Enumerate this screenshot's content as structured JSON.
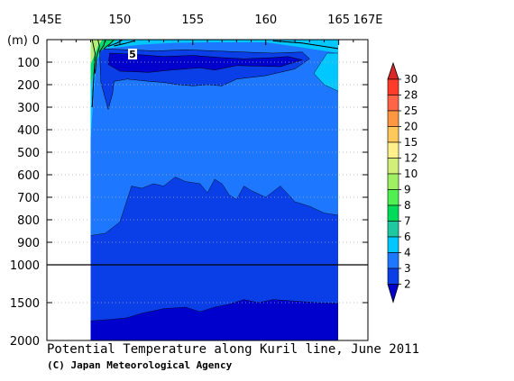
{
  "chart_data": {
    "type": "heatmap",
    "title": "Potential Temperature along Kuril line, June 2011",
    "credit": "(C) Japan Meteorological Agency",
    "x_ticks": [
      {
        "value": 145,
        "label": "145E"
      },
      {
        "value": 150,
        "label": "150"
      },
      {
        "value": 155,
        "label": "155"
      },
      {
        "value": 160,
        "label": "160"
      },
      {
        "value": 165,
        "label": "165"
      },
      {
        "value": 167,
        "label": "167E"
      }
    ],
    "x_range": [
      145,
      167
    ],
    "section_range": [
      148.0,
      165.0
    ],
    "y_unit": "(m)",
    "y_ticks_upper": [
      0,
      100,
      200,
      300,
      400,
      500,
      600,
      700,
      800,
      900,
      1000
    ],
    "y_ticks_lower": [
      1500,
      2000
    ],
    "y_range": [
      0,
      2000
    ],
    "y_break": 1000,
    "grid": true,
    "legend_position": "right",
    "levels": [
      2,
      3,
      4,
      6,
      7,
      8,
      9,
      10,
      12,
      15,
      20,
      25,
      28,
      30
    ],
    "level_colors": [
      "#0000cd",
      "#0a3ee6",
      "#1e78ff",
      "#00c8ff",
      "#1ec8a0",
      "#00dc5a",
      "#50f050",
      "#a0f064",
      "#d2f078",
      "#fff08c",
      "#ffc85a",
      "#ff9641",
      "#ff6446",
      "#ff3c28",
      "#dc2828"
    ],
    "contour_label": "5",
    "isotherm_2_depth": [
      {
        "lon": 148.0,
        "depth": 870
      },
      {
        "lon": 149.0,
        "depth": 860
      },
      {
        "lon": 150.0,
        "depth": 810
      },
      {
        "lon": 150.8,
        "depth": 650
      },
      {
        "lon": 151.5,
        "depth": 660
      },
      {
        "lon": 152.3,
        "depth": 640
      },
      {
        "lon": 153.0,
        "depth": 650
      },
      {
        "lon": 153.8,
        "depth": 610
      },
      {
        "lon": 154.5,
        "depth": 630
      },
      {
        "lon": 155.5,
        "depth": 640
      },
      {
        "lon": 156.0,
        "depth": 680
      },
      {
        "lon": 156.5,
        "depth": 620
      },
      {
        "lon": 157.0,
        "depth": 640
      },
      {
        "lon": 157.5,
        "depth": 690
      },
      {
        "lon": 158.0,
        "depth": 710
      },
      {
        "lon": 158.5,
        "depth": 650
      },
      {
        "lon": 159.0,
        "depth": 670
      },
      {
        "lon": 160.0,
        "depth": 700
      },
      {
        "lon": 161.0,
        "depth": 650
      },
      {
        "lon": 162.0,
        "depth": 720
      },
      {
        "lon": 163.0,
        "depth": 740
      },
      {
        "lon": 164.0,
        "depth": 770
      },
      {
        "lon": 165.0,
        "depth": 780
      }
    ],
    "deep_boundary_depth": [
      {
        "lon": 148.0,
        "depth": 1740
      },
      {
        "lon": 149.5,
        "depth": 1720
      },
      {
        "lon": 150.5,
        "depth": 1700
      },
      {
        "lon": 151.5,
        "depth": 1640
      },
      {
        "lon": 153.0,
        "depth": 1580
      },
      {
        "lon": 154.5,
        "depth": 1560
      },
      {
        "lon": 155.5,
        "depth": 1620
      },
      {
        "lon": 156.5,
        "depth": 1560
      },
      {
        "lon": 157.5,
        "depth": 1520
      },
      {
        "lon": 158.5,
        "depth": 1460
      },
      {
        "lon": 159.5,
        "depth": 1500
      },
      {
        "lon": 160.5,
        "depth": 1460
      },
      {
        "lon": 162.0,
        "depth": 1480
      },
      {
        "lon": 163.5,
        "depth": 1500
      },
      {
        "lon": 165.0,
        "depth": 1510
      }
    ],
    "core_below_2": [
      {
        "lon": 149.3,
        "depth": 60
      },
      {
        "lon": 151.0,
        "depth": 65
      },
      {
        "lon": 153.0,
        "depth": 75
      },
      {
        "lon": 155.0,
        "depth": 70
      },
      {
        "lon": 157.0,
        "depth": 80
      },
      {
        "lon": 158.5,
        "depth": 85
      },
      {
        "lon": 160.5,
        "depth": 80
      },
      {
        "lon": 161.5,
        "depth": 75
      },
      {
        "lon": 162.5,
        "depth": 90
      },
      {
        "lon": 161.0,
        "depth": 120
      },
      {
        "lon": 158.0,
        "depth": 115
      },
      {
        "lon": 156.5,
        "depth": 135
      },
      {
        "lon": 155.5,
        "depth": 125
      },
      {
        "lon": 153.5,
        "depth": 135
      },
      {
        "lon": 152.0,
        "depth": 145
      },
      {
        "lon": 150.0,
        "depth": 140
      },
      {
        "lon": 149.2,
        "depth": 110
      }
    ],
    "subsurface_below_3": [
      {
        "lon": 148.6,
        "depth": 40
      },
      {
        "lon": 150.5,
        "depth": 45
      },
      {
        "lon": 152.5,
        "depth": 50
      },
      {
        "lon": 154.5,
        "depth": 45
      },
      {
        "lon": 156.5,
        "depth": 50
      },
      {
        "lon": 158.5,
        "depth": 55
      },
      {
        "lon": 160.5,
        "depth": 60
      },
      {
        "lon": 162.5,
        "depth": 55
      },
      {
        "lon": 163.0,
        "depth": 85
      },
      {
        "lon": 162.0,
        "depth": 130
      },
      {
        "lon": 160.0,
        "depth": 160
      },
      {
        "lon": 158.0,
        "depth": 175
      },
      {
        "lon": 157.0,
        "depth": 205
      },
      {
        "lon": 156.0,
        "depth": 200
      },
      {
        "lon": 155.0,
        "depth": 205
      },
      {
        "lon": 154.0,
        "depth": 200
      },
      {
        "lon": 153.0,
        "depth": 190
      },
      {
        "lon": 152.0,
        "depth": 185
      },
      {
        "lon": 150.5,
        "depth": 175
      },
      {
        "lon": 149.6,
        "depth": 185
      },
      {
        "lon": 149.5,
        "depth": 240
      },
      {
        "lon": 149.2,
        "depth": 310
      },
      {
        "lon": 148.7,
        "depth": 190
      }
    ],
    "surface_warm_cap": [
      {
        "lon": 148.0,
        "depth": 0
      },
      {
        "lon": 148.0,
        "depth": 440
      },
      {
        "lon": 148.2,
        "depth": 250
      },
      {
        "lon": 148.4,
        "depth": 90
      },
      {
        "lon": 149.0,
        "depth": 40
      },
      {
        "lon": 151.5,
        "depth": 22
      },
      {
        "lon": 153.5,
        "depth": 15
      },
      {
        "lon": 156.0,
        "depth": 12
      },
      {
        "lon": 160.0,
        "depth": 12
      },
      {
        "lon": 162.0,
        "depth": 30
      },
      {
        "lon": 165.0,
        "depth": 60
      },
      {
        "lon": 165.0,
        "depth": 0
      }
    ],
    "east_warm_edge": [
      {
        "lon": 164.2,
        "depth": 60
      },
      {
        "lon": 165.0,
        "depth": 60
      },
      {
        "lon": 165.0,
        "depth": 230
      },
      {
        "lon": 164.0,
        "depth": 200
      },
      {
        "lon": 163.3,
        "depth": 150
      }
    ],
    "coastal_warm_contours": [
      [
        {
          "lon": 148.1,
          "depth": 0
        },
        {
          "lon": 148.3,
          "depth": 60
        },
        {
          "lon": 148.2,
          "depth": 180
        },
        {
          "lon": 148.1,
          "depth": 300
        }
      ],
      [
        {
          "lon": 148.5,
          "depth": 0
        },
        {
          "lon": 148.6,
          "depth": 30
        },
        {
          "lon": 148.4,
          "depth": 80
        },
        {
          "lon": 148.3,
          "depth": 150
        }
      ],
      [
        {
          "lon": 149.0,
          "depth": 0
        },
        {
          "lon": 148.9,
          "depth": 25
        },
        {
          "lon": 148.6,
          "depth": 55
        }
      ],
      [
        {
          "lon": 149.6,
          "depth": 0
        },
        {
          "lon": 149.3,
          "depth": 20
        },
        {
          "lon": 148.9,
          "depth": 40
        }
      ],
      [
        {
          "lon": 150.2,
          "depth": 0
        },
        {
          "lon": 149.8,
          "depth": 15
        },
        {
          "lon": 149.2,
          "depth": 30
        }
      ],
      [
        {
          "lon": 151.0,
          "depth": 5
        },
        {
          "lon": 150.3,
          "depth": 18
        },
        {
          "lon": 149.6,
          "depth": 28
        }
      ],
      [
        {
          "lon": 160.5,
          "depth": 5
        },
        {
          "lon": 162.5,
          "depth": 15
        },
        {
          "lon": 165.0,
          "depth": 40
        }
      ]
    ]
  }
}
